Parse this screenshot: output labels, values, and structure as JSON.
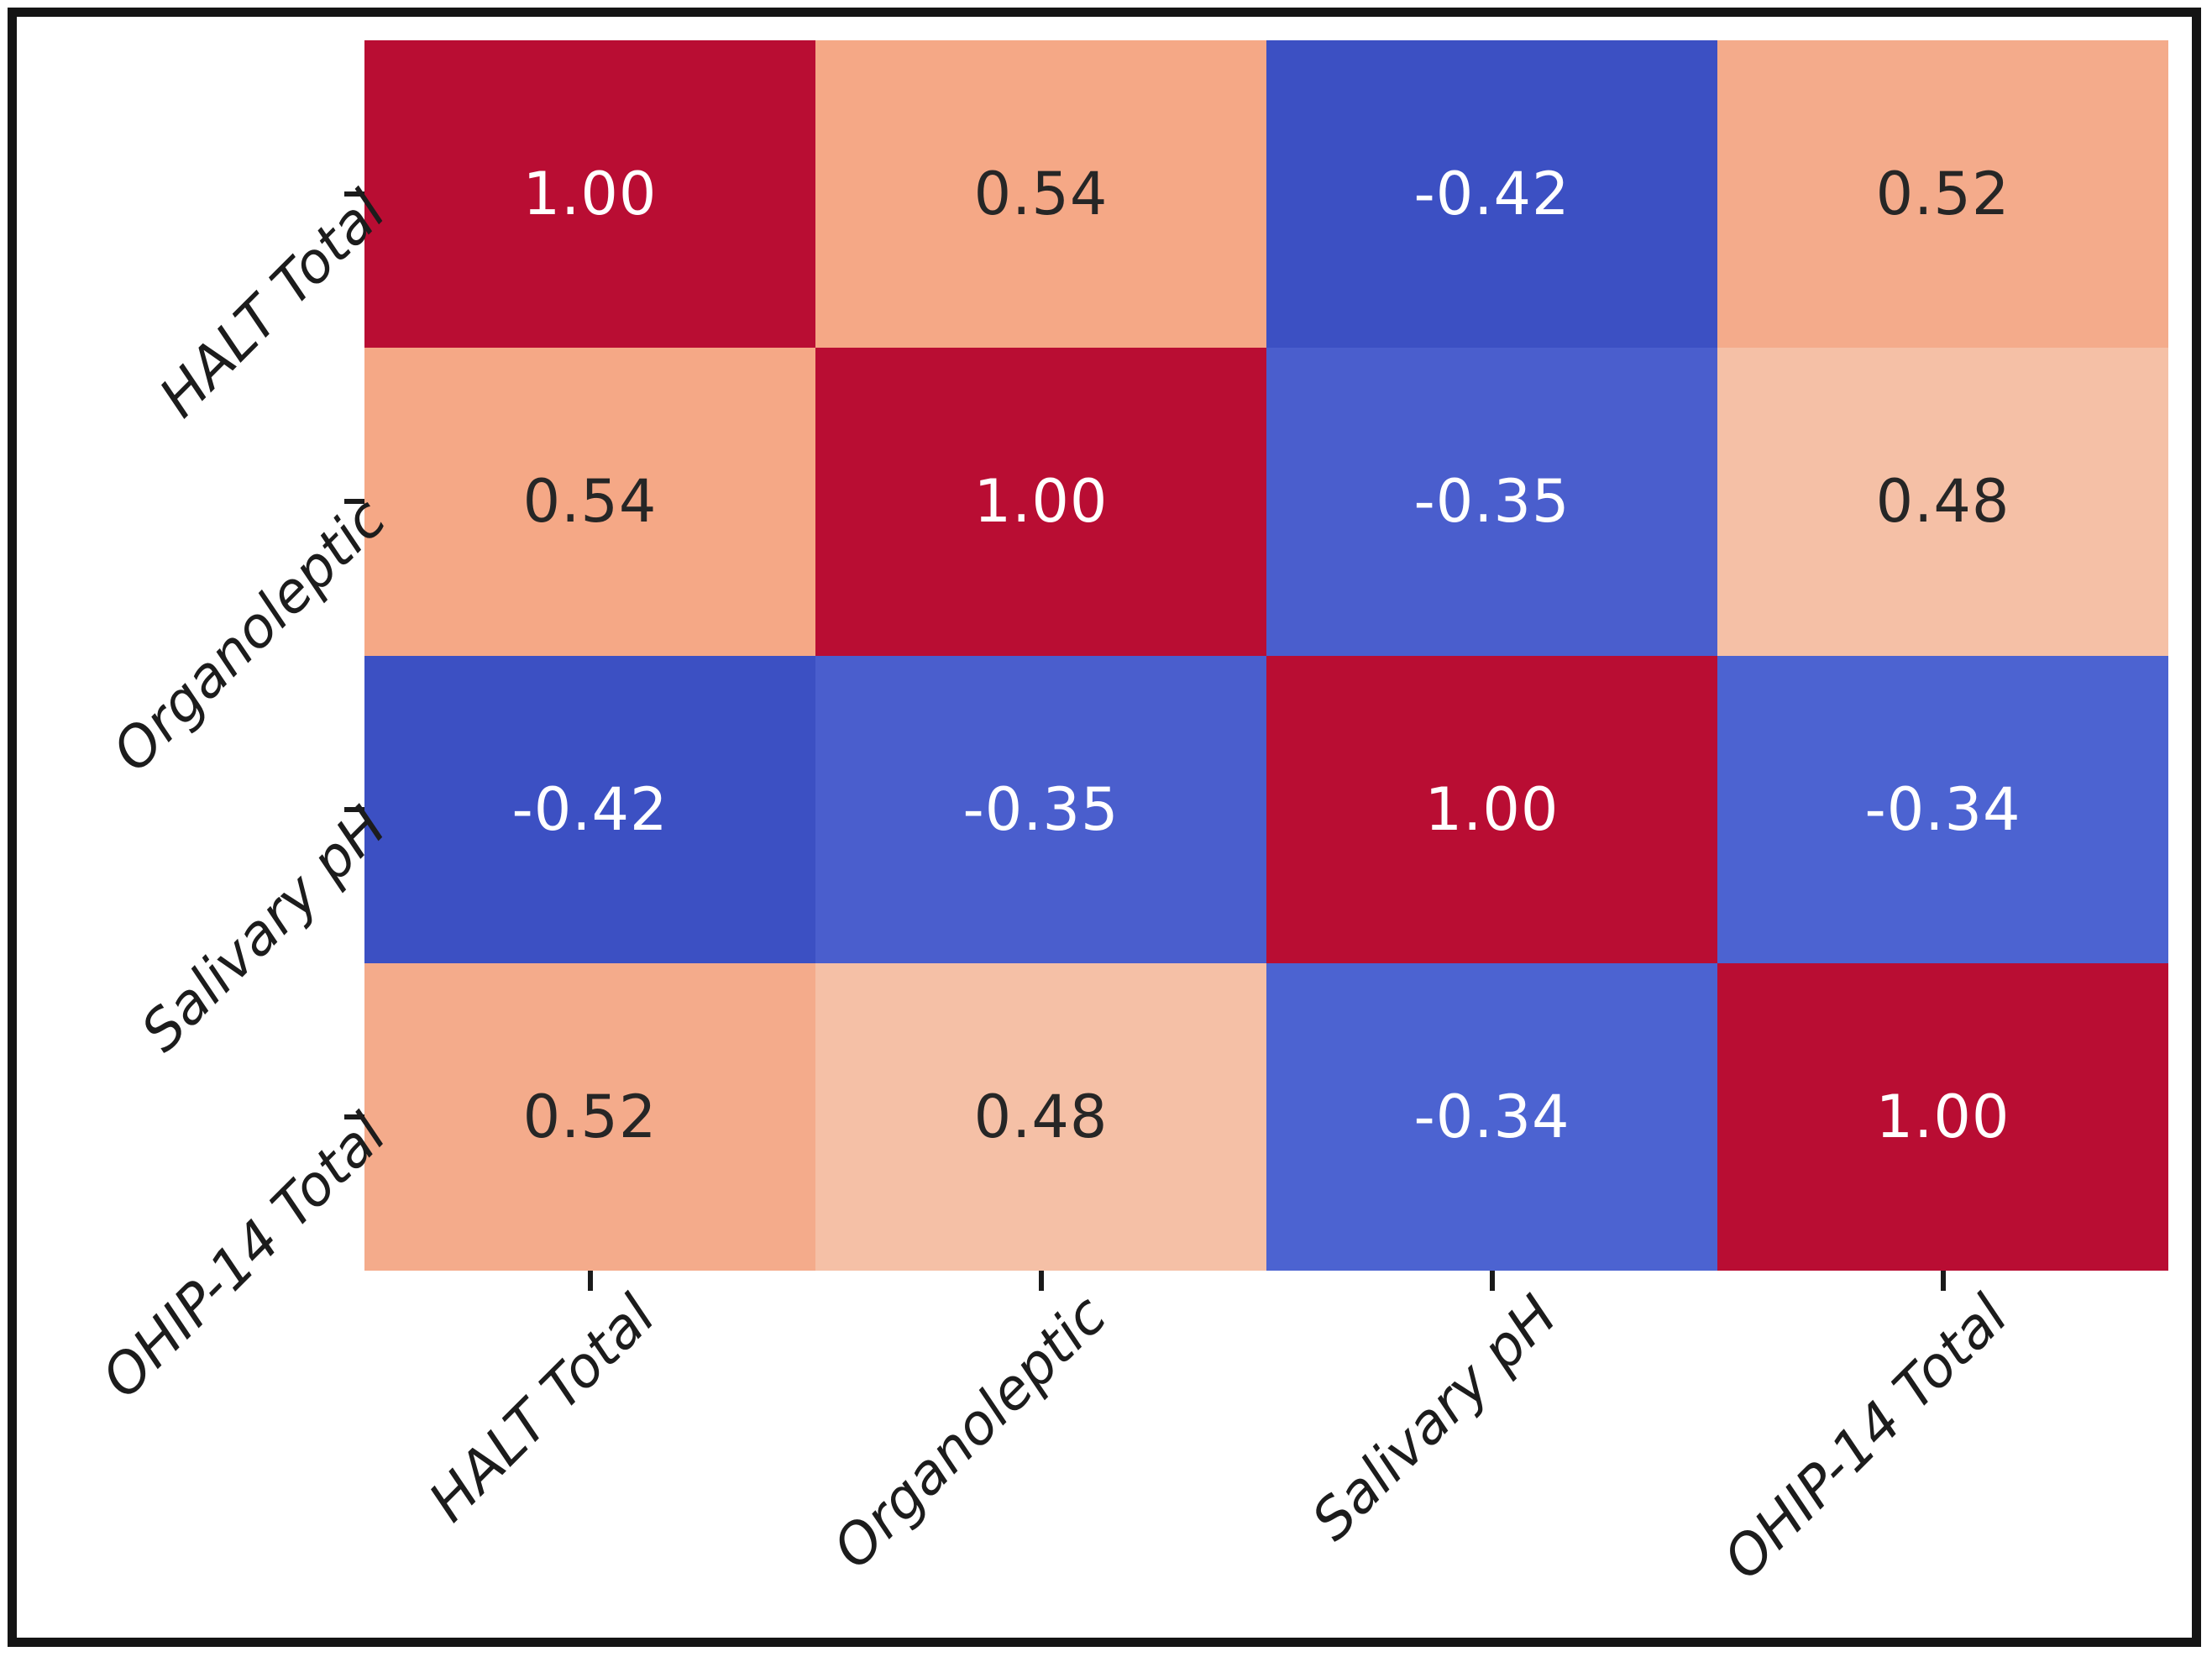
{
  "figure": {
    "background_color": "#ffffff",
    "frame_color": "#141414"
  },
  "chart_data": {
    "type": "heatmap",
    "title": "",
    "xlabel": "",
    "ylabel": "",
    "categories": [
      "HALT Total",
      "Organoleptic",
      "Salivary pH",
      "OHIP-14 Total"
    ],
    "matrix": [
      [
        1.0,
        0.54,
        -0.42,
        0.52
      ],
      [
        0.54,
        1.0,
        -0.35,
        0.48
      ],
      [
        -0.42,
        -0.35,
        1.0,
        -0.34
      ],
      [
        0.52,
        0.48,
        -0.34,
        1.0
      ]
    ],
    "value_labels": [
      [
        "1.00",
        "0.54",
        "-0.42",
        "0.52"
      ],
      [
        "0.54",
        "1.00",
        "-0.35",
        "0.48"
      ],
      [
        "-0.42",
        "-0.35",
        "1.00",
        "-0.34"
      ],
      [
        "0.52",
        "0.48",
        "-0.34",
        "1.00"
      ]
    ],
    "cell_colors": [
      [
        "#b90d33",
        "#f5a886",
        "#3c50c3",
        "#f4ab8b"
      ],
      [
        "#f5a886",
        "#b90d33",
        "#4a5ecd",
        "#f5c0a6"
      ],
      [
        "#3c50c3",
        "#4a5ecd",
        "#b90d33",
        "#4c63d1"
      ],
      [
        "#f4ab8b",
        "#f5c0a6",
        "#4c63d1",
        "#b90d33"
      ]
    ],
    "text_colors": [
      [
        "#ffffff",
        "#262626",
        "#ffffff",
        "#262626"
      ],
      [
        "#262626",
        "#ffffff",
        "#ffffff",
        "#262626"
      ],
      [
        "#ffffff",
        "#ffffff",
        "#ffffff",
        "#ffffff"
      ],
      [
        "#262626",
        "#262626",
        "#ffffff",
        "#ffffff"
      ]
    ],
    "colormap": "coolwarm",
    "annotations_on": true,
    "grid": false,
    "legend_position": "none",
    "tick_color": "#1a1a1a"
  }
}
